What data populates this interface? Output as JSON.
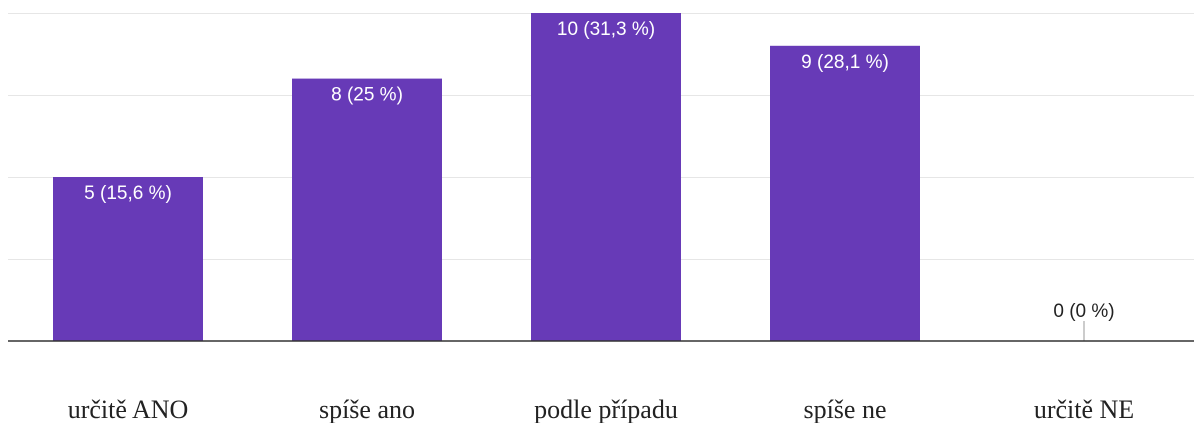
{
  "chart_data": {
    "type": "bar",
    "categories": [
      "určitě ANO",
      "spíše ano",
      "podle případu",
      "spíše ne",
      "určitě NE"
    ],
    "values": [
      5,
      8,
      10,
      9,
      0
    ],
    "data_labels": [
      "5 (15,6 %)",
      "8 (25 %)",
      "10 (31,3 %)",
      "9 (28,1 %)",
      "0 (0 %)"
    ],
    "ylim": [
      0,
      10
    ],
    "grid": true,
    "legend": "none",
    "bar_color": "#673ab7"
  }
}
